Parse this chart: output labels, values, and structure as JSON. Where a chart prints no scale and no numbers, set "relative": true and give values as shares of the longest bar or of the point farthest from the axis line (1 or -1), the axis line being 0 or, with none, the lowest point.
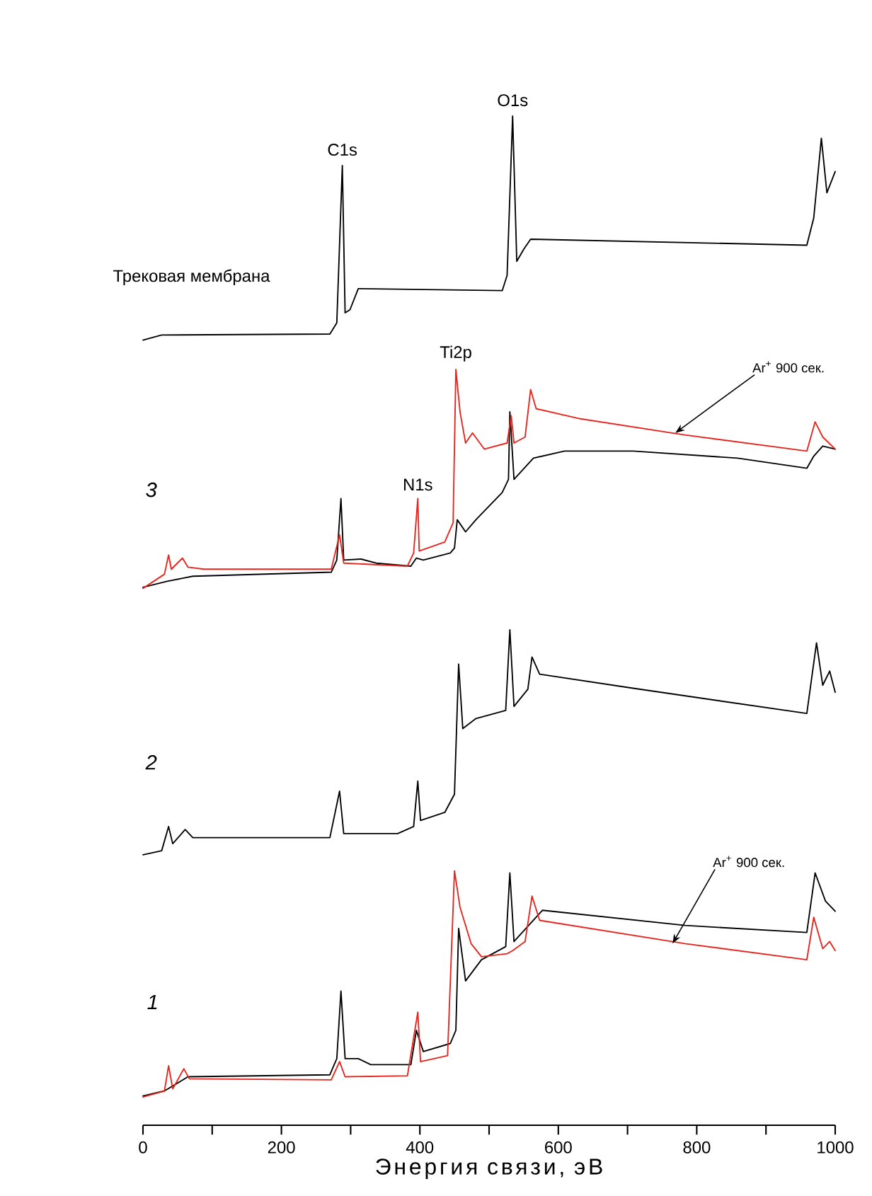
{
  "chart_data": {
    "type": "line",
    "relative": true,
    "xlabel": "Энергия связи, эВ",
    "xlim": [
      0,
      1000
    ],
    "xticks": [
      0,
      {
        "value": 100,
        "label": null
      },
      200,
      {
        "value": 300,
        "label": null
      },
      400,
      {
        "value": 500,
        "label": null
      },
      600,
      {
        "value": 700,
        "label": null
      },
      800,
      {
        "value": 900,
        "label": null
      },
      1000
    ],
    "series": [
      {
        "color": "#000000",
        "x": [
          0,
          27,
          270,
          280,
          288,
          292,
          299,
          311,
          519,
          526,
          534,
          540,
          550,
          560,
          959,
          969,
          980,
          988,
          1000
        ],
        "values": [
          0.778,
          0.783,
          0.784,
          0.795,
          0.951,
          0.805,
          0.808,
          0.829,
          0.827,
          0.842,
          1.0,
          0.856,
          0.868,
          0.878,
          0.872,
          0.899,
          0.978,
          0.924,
          0.945
        ]
      },
      {
        "color": "#000000",
        "x": [
          0,
          35,
          72,
          272,
          280,
          286,
          290,
          315,
          337,
          387,
          395,
          405,
          444,
          450,
          454,
          466,
          481,
          519,
          528,
          530,
          536,
          564,
          609,
          708,
          859,
          959,
          969,
          982,
          1000
        ],
        "values": [
          0.533,
          0.539,
          0.544,
          0.548,
          0.56,
          0.621,
          0.56,
          0.561,
          0.557,
          0.554,
          0.562,
          0.56,
          0.567,
          0.572,
          0.6,
          0.588,
          0.6,
          0.627,
          0.64,
          0.707,
          0.64,
          0.661,
          0.668,
          0.668,
          0.661,
          0.651,
          0.663,
          0.673,
          0.67
        ]
      },
      {
        "color": "#e8241c",
        "x": [
          0,
          31,
          37,
          41,
          57,
          65,
          88,
          272,
          284,
          290,
          382,
          391,
          397,
          399,
          436,
          448,
          452,
          458,
          466,
          476,
          493,
          526,
          532,
          536,
          552,
          560,
          568,
          632,
          783,
          959,
          971,
          982,
          1000
        ],
        "values": [
          0.532,
          0.546,
          0.565,
          0.551,
          0.562,
          0.553,
          0.551,
          0.551,
          0.585,
          0.557,
          0.554,
          0.567,
          0.621,
          0.569,
          0.578,
          0.597,
          0.749,
          0.707,
          0.676,
          0.686,
          0.67,
          0.676,
          0.703,
          0.676,
          0.682,
          0.729,
          0.71,
          0.7,
          0.684,
          0.668,
          0.697,
          0.682,
          0.67
        ]
      },
      {
        "color": "#000000",
        "x": [
          0,
          27,
          37,
          43,
          61,
          72,
          270,
          284,
          290,
          368,
          391,
          397,
          401,
          436,
          450,
          456,
          462,
          481,
          524,
          530,
          536,
          556,
          562,
          573,
          708,
          959,
          973,
          982,
          992,
          1000
        ],
        "values": [
          0.268,
          0.272,
          0.296,
          0.279,
          0.293,
          0.285,
          0.285,
          0.331,
          0.289,
          0.289,
          0.296,
          0.341,
          0.302,
          0.31,
          0.328,
          0.457,
          0.393,
          0.403,
          0.411,
          0.491,
          0.415,
          0.432,
          0.464,
          0.447,
          0.433,
          0.408,
          0.478,
          0.436,
          0.45,
          0.429
        ]
      },
      {
        "color": "#000000",
        "x": [
          0,
          31,
          65,
          270,
          280,
          286,
          292,
          311,
          329,
          387,
          395,
          405,
          444,
          452,
          456,
          466,
          489,
          524,
          530,
          536,
          577,
          783,
          959,
          971,
          986,
          1000
        ],
        "values": [
          0.029,
          0.034,
          0.048,
          0.05,
          0.066,
          0.133,
          0.066,
          0.066,
          0.06,
          0.06,
          0.094,
          0.073,
          0.081,
          0.094,
          0.195,
          0.143,
          0.164,
          0.177,
          0.25,
          0.182,
          0.213,
          0.198,
          0.191,
          0.25,
          0.222,
          0.212
        ]
      },
      {
        "color": "#e8241c",
        "x": [
          0,
          31,
          37,
          43,
          59,
          67,
          272,
          284,
          292,
          382,
          397,
          401,
          440,
          450,
          458,
          474,
          489,
          526,
          534,
          552,
          562,
          573,
          783,
          959,
          969,
          982,
          992,
          1000
        ],
        "values": [
          0.028,
          0.034,
          0.059,
          0.036,
          0.056,
          0.046,
          0.045,
          0.063,
          0.048,
          0.049,
          0.112,
          0.063,
          0.069,
          0.252,
          0.216,
          0.18,
          0.167,
          0.17,
          0.173,
          0.182,
          0.227,
          0.203,
          0.18,
          0.164,
          0.206,
          0.175,
          0.182,
          0.173
        ]
      }
    ],
    "annotations": [
      "Трековая мембрана",
      {
        "text": "C1s",
        "x": 288,
        "y": 0.951
      },
      {
        "text": "O1s",
        "x": 534,
        "y": 1.0
      },
      {
        "text": "Ti2p",
        "x": 452,
        "y": 0.749
      },
      {
        "text": "N1s",
        "x": 397,
        "y": 0.621
      },
      "3",
      {
        "text": "Ar$^{+}$ 900 сек.",
        "x": 769,
        "y": 0.686
      },
      "2",
      "1",
      {
        "text": "Ar$^{+}$ 900 сек.",
        "x": 765,
        "y": 0.18
      }
    ]
  }
}
